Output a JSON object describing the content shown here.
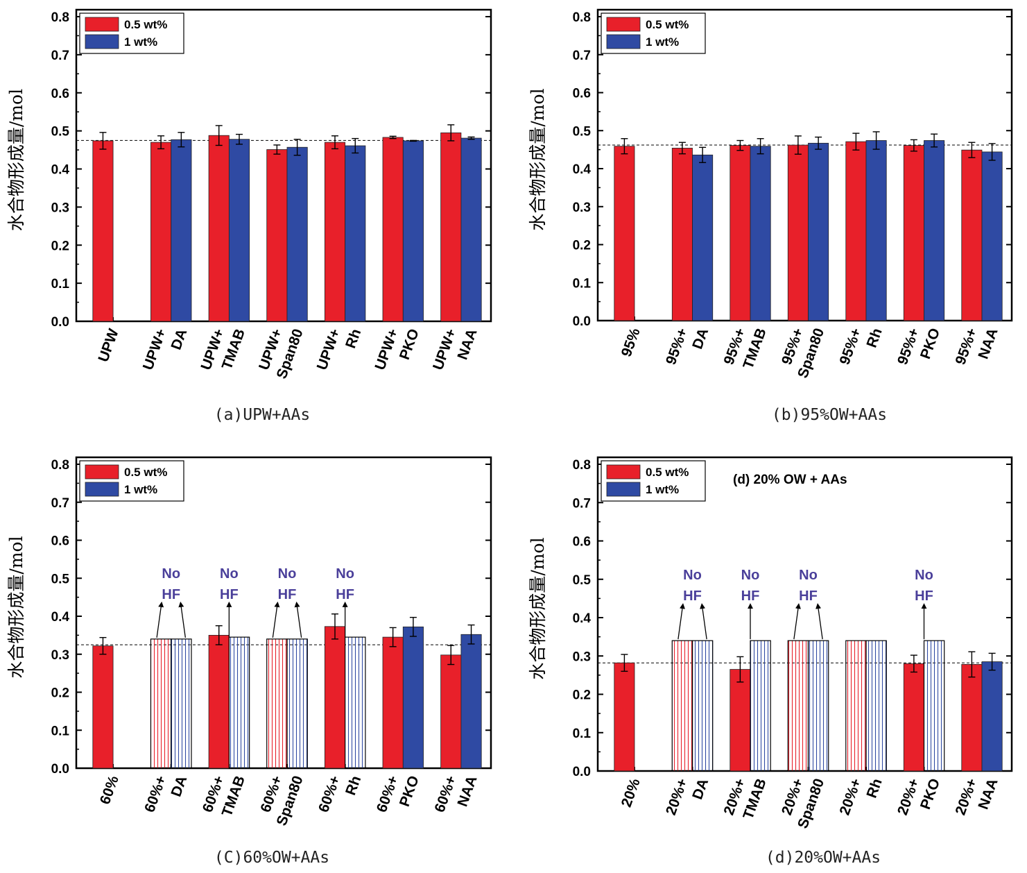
{
  "colors": {
    "series_red": "#e8202a",
    "series_blue": "#2f4aa3",
    "annotation": "#4a3f9a"
  },
  "chart_data": [
    {
      "type": "bar",
      "caption": "(a)UPW+AAs",
      "ylabel": "水合物形成量/mol",
      "ylim": [
        0,
        0.8
      ],
      "yticks": [
        "0.0",
        "0.1",
        "0.2",
        "0.3",
        "0.4",
        "0.5",
        "0.6",
        "0.7",
        "0.8"
      ],
      "categories": [
        [
          "UPW"
        ],
        [
          "UPW+",
          "DA"
        ],
        [
          "UPW+",
          "TMAB"
        ],
        [
          "UPW+",
          "Span80"
        ],
        [
          "UPW+",
          "Rh"
        ],
        [
          "UPW+",
          "PKO"
        ],
        [
          "UPW+",
          "NAA"
        ]
      ],
      "legend": {
        "placement": "top-left",
        "entries": [
          "0.5 wt%",
          "1 wt%"
        ]
      },
      "reference_line": 0.475,
      "series": [
        {
          "name": "0.5 wt%",
          "values": [
            0.474,
            0.47,
            0.488,
            0.451,
            0.47,
            0.483,
            0.495
          ],
          "errors": [
            0.022,
            0.017,
            0.026,
            0.012,
            0.017,
            0.003,
            0.021
          ],
          "hatched": [
            false,
            false,
            false,
            false,
            false,
            false,
            false
          ]
        },
        {
          "name": "1 wt%",
          "values": [
            null,
            0.477,
            0.478,
            0.457,
            0.461,
            0.474,
            0.481
          ],
          "errors": [
            null,
            0.019,
            0.013,
            0.021,
            0.019,
            0.001,
            0.003
          ],
          "hatched": [
            false,
            false,
            false,
            false,
            false,
            false,
            false
          ]
        }
      ],
      "annotations": []
    },
    {
      "type": "bar",
      "caption": "(b)95%OW+AAs",
      "ylabel": "水合物形成量/mol",
      "ylim": [
        0,
        0.8
      ],
      "yticks": [
        "0.0",
        "0.1",
        "0.2",
        "0.3",
        "0.4",
        "0.5",
        "0.6",
        "0.7",
        "0.8"
      ],
      "categories": [
        [
          "95%"
        ],
        [
          "95%+",
          "DA"
        ],
        [
          "95%+",
          "TMAB"
        ],
        [
          "95%+",
          "Span80"
        ],
        [
          "95%+",
          "Rh"
        ],
        [
          "95%+",
          "PKO"
        ],
        [
          "95%+",
          "NAA"
        ]
      ],
      "legend": {
        "placement": "top-left",
        "entries": [
          "0.5 wt%",
          "1 wt%"
        ]
      },
      "reference_line": 0.462,
      "series": [
        {
          "name": "0.5 wt%",
          "values": [
            0.459,
            0.454,
            0.461,
            0.462,
            0.471,
            0.461,
            0.449
          ],
          "errors": [
            0.02,
            0.015,
            0.013,
            0.024,
            0.022,
            0.015,
            0.02
          ],
          "hatched": [
            false,
            false,
            false,
            false,
            false,
            false,
            false
          ]
        },
        {
          "name": "1 wt%",
          "values": [
            null,
            0.436,
            0.459,
            0.467,
            0.474,
            0.474,
            0.444
          ],
          "errors": [
            null,
            0.02,
            0.02,
            0.016,
            0.023,
            0.017,
            0.022
          ],
          "hatched": [
            false,
            false,
            false,
            false,
            false,
            false,
            false
          ]
        }
      ],
      "annotations": []
    },
    {
      "type": "bar",
      "caption": "(C)60%OW+AAs",
      "ylabel": "水合物形成量/mol",
      "ylim": [
        0,
        0.8
      ],
      "yticks": [
        "0.0",
        "0.1",
        "0.2",
        "0.3",
        "0.4",
        "0.5",
        "0.6",
        "0.7",
        "0.8"
      ],
      "categories": [
        [
          "60%"
        ],
        [
          "60%+",
          "DA"
        ],
        [
          "60%+",
          "TMAB"
        ],
        [
          "60%+",
          "Span80"
        ],
        [
          "60%+",
          "Rh"
        ],
        [
          "60%+",
          "PKO"
        ],
        [
          "60%+",
          "NAA"
        ]
      ],
      "legend": {
        "placement": "top-left",
        "entries": [
          "0.5 wt%",
          "1 wt%"
        ]
      },
      "reference_line": 0.325,
      "series": [
        {
          "name": "0.5 wt%",
          "values": [
            0.322,
            0.34,
            0.35,
            0.34,
            0.373,
            0.345,
            0.298
          ],
          "errors": [
            0.022,
            null,
            0.025,
            null,
            0.033,
            0.025,
            0.025
          ],
          "hatched": [
            false,
            true,
            false,
            true,
            false,
            false,
            false
          ]
        },
        {
          "name": "1 wt%",
          "values": [
            null,
            0.34,
            0.345,
            0.34,
            0.345,
            0.372,
            0.352
          ],
          "errors": [
            null,
            null,
            null,
            null,
            null,
            0.025,
            0.025
          ],
          "hatched": [
            false,
            true,
            true,
            true,
            true,
            false,
            false
          ]
        }
      ],
      "annotations": [
        {
          "text": [
            "No",
            "HF"
          ],
          "category": 1,
          "arrows": [
            0,
            1
          ]
        },
        {
          "text": [
            "No",
            "HF"
          ],
          "category": 2,
          "arrows": [
            1
          ]
        },
        {
          "text": [
            "No",
            "HF"
          ],
          "category": 3,
          "arrows": [
            0,
            1
          ]
        },
        {
          "text": [
            "No",
            "HF"
          ],
          "category": 4,
          "arrows": [
            1
          ]
        }
      ]
    },
    {
      "type": "bar",
      "caption": "(d)20%OW+AAs",
      "title": "(d) 20% OW + AAs",
      "ylabel": "水合物形成量/mol",
      "ylim": [
        0,
        0.8
      ],
      "yticks": [
        "0.0",
        "0.1",
        "0.2",
        "0.3",
        "0.4",
        "0.5",
        "0.6",
        "0.7",
        "0.8"
      ],
      "categories": [
        [
          "20%"
        ],
        [
          "20%+",
          "DA"
        ],
        [
          "20%+",
          "TMAB"
        ],
        [
          "20%+",
          "Span80"
        ],
        [
          "20%+",
          "Rh"
        ],
        [
          "20%+",
          "PKO"
        ],
        [
          "20%+",
          "NAA"
        ]
      ],
      "legend": {
        "placement": "top-left",
        "entries": [
          "0.5 wt%",
          "1 wt%"
        ]
      },
      "reference_line": 0.282,
      "series": [
        {
          "name": "0.5 wt%",
          "values": [
            0.282,
            0.34,
            0.265,
            0.34,
            0.34,
            0.28,
            0.278
          ],
          "errors": [
            0.022,
            null,
            0.033,
            null,
            null,
            0.022,
            0.033
          ],
          "hatched": [
            false,
            true,
            false,
            true,
            true,
            false,
            false
          ]
        },
        {
          "name": "1 wt%",
          "values": [
            null,
            0.34,
            0.34,
            0.34,
            0.34,
            0.34,
            0.285
          ],
          "errors": [
            null,
            null,
            null,
            null,
            null,
            null,
            0.022
          ],
          "hatched": [
            false,
            true,
            true,
            true,
            true,
            true,
            false
          ]
        }
      ],
      "annotations": [
        {
          "text": [
            "No",
            "HF"
          ],
          "category": 1,
          "arrows": [
            0,
            1
          ]
        },
        {
          "text": [
            "No",
            "HF"
          ],
          "category": 2,
          "arrows": [
            1
          ]
        },
        {
          "text": [
            "No",
            "HF"
          ],
          "category": 3,
          "arrows": [
            0,
            1
          ]
        },
        {
          "text": [
            "No",
            "HF"
          ],
          "category": 5,
          "arrows": [
            1
          ]
        }
      ]
    }
  ]
}
